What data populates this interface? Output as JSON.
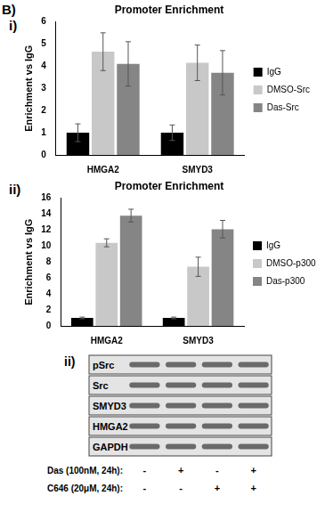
{
  "figure_label": "B)",
  "chart_data": [
    {
      "type": "bar",
      "panel_label": "i)",
      "title": "Promoter Enrichment",
      "y_label": "Enrichment vs IgG",
      "categories": [
        "HMGA2",
        "SMYD3"
      ],
      "series": [
        {
          "name": "IgG",
          "color": "#000000",
          "values": [
            1,
            1
          ],
          "errors": [
            0.4,
            0.35
          ]
        },
        {
          "name": "DMSO-Src",
          "color": "#c8c8c8",
          "values": [
            4.65,
            4.15
          ],
          "errors": [
            0.85,
            0.8
          ]
        },
        {
          "name": "Das-Src",
          "color": "#858585",
          "values": [
            4.1,
            3.7
          ],
          "errors": [
            1.0,
            1.0
          ]
        }
      ],
      "ylim": [
        0,
        6
      ],
      "yticks": [
        0,
        1,
        2,
        3,
        4,
        5,
        6
      ],
      "grid": false,
      "legend": "right"
    },
    {
      "type": "bar",
      "panel_label": "ii)",
      "title": "Promoter Enrichment",
      "y_label": "Enrichment vs IgG",
      "categories": [
        "HMGA2",
        "SMYD3"
      ],
      "series": [
        {
          "name": "IgG",
          "color": "#000000",
          "values": [
            1,
            1
          ],
          "errors": [
            0.1,
            0.1
          ]
        },
        {
          "name": "DMSO-p300",
          "color": "#c8c8c8",
          "values": [
            10.4,
            7.4
          ],
          "errors": [
            0.5,
            1.2
          ]
        },
        {
          "name": "Das-p300",
          "color": "#858585",
          "values": [
            13.8,
            12.1
          ],
          "errors": [
            0.8,
            1.1
          ]
        }
      ],
      "ylim": [
        0,
        16
      ],
      "yticks": [
        0,
        2,
        4,
        6,
        8,
        10,
        12,
        14,
        16
      ],
      "grid": false,
      "legend": "right"
    }
  ],
  "blot": {
    "panel_label": "ii)",
    "rows": [
      "pSrc",
      "Src",
      "SMYD3",
      "HMGA2",
      "GAPDH"
    ],
    "treatments": [
      {
        "label": "Das (100nM, 24h):",
        "lanes": [
          "-",
          "+",
          "-",
          "+"
        ]
      },
      {
        "label": "C646 (20μM, 24h):",
        "lanes": [
          "-",
          "-",
          "+",
          "+"
        ]
      }
    ]
  }
}
